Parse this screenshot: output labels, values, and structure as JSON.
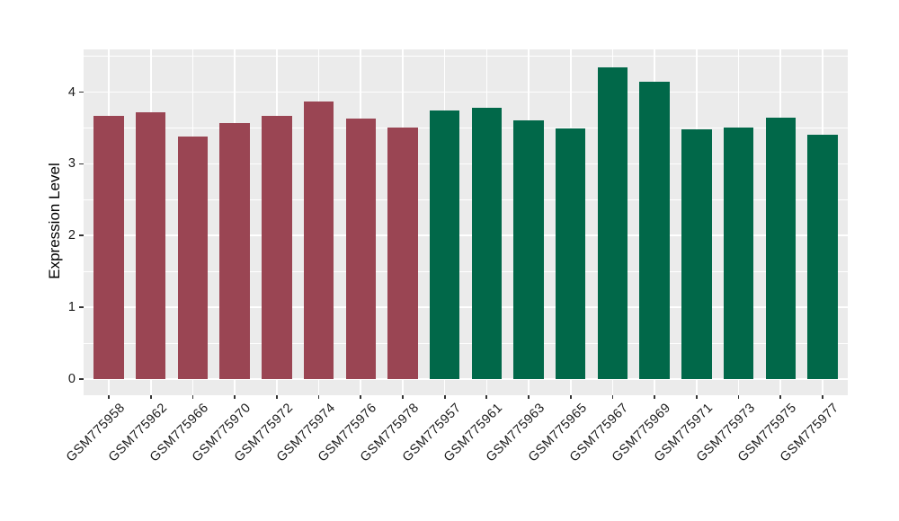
{
  "chart_data": {
    "type": "bar",
    "title": "",
    "xlabel": "",
    "ylabel": "Expression Level",
    "categories": [
      "GSM775958",
      "GSM775962",
      "GSM775966",
      "GSM775970",
      "GSM775972",
      "GSM775974",
      "GSM775976",
      "GSM775978",
      "GSM775957",
      "GSM775961",
      "GSM775963",
      "GSM775965",
      "GSM775967",
      "GSM775969",
      "GSM775971",
      "GSM775973",
      "GSM775975",
      "GSM775977"
    ],
    "values": [
      3.67,
      3.72,
      3.38,
      3.57,
      3.67,
      3.87,
      3.63,
      3.51,
      3.74,
      3.78,
      3.6,
      3.49,
      4.35,
      4.14,
      3.48,
      3.5,
      3.64,
      3.4
    ],
    "bar_colors": [
      "#9A4553",
      "#9A4553",
      "#9A4553",
      "#9A4553",
      "#9A4553",
      "#9A4553",
      "#9A4553",
      "#9A4553",
      "#016849",
      "#016849",
      "#016849",
      "#016849",
      "#016849",
      "#016849",
      "#016849",
      "#016849",
      "#016849",
      "#016849"
    ],
    "yticks": [
      0,
      1,
      2,
      3,
      4
    ],
    "ytick_labels": [
      "0",
      "1",
      "2",
      "3",
      "4"
    ],
    "ylim": [
      -0.225,
      4.595
    ],
    "x_label_rotation_deg": 45,
    "legend": "none",
    "grid": {
      "horizontal_major": true,
      "horizontal_minor": true,
      "vertical_major_at_categories": true
    },
    "panel_background": "#EBEBEB",
    "gridline_color": "#FFFFFF",
    "axis_text_color": "#1A1A1A",
    "tick_mark_color": "#333333"
  }
}
